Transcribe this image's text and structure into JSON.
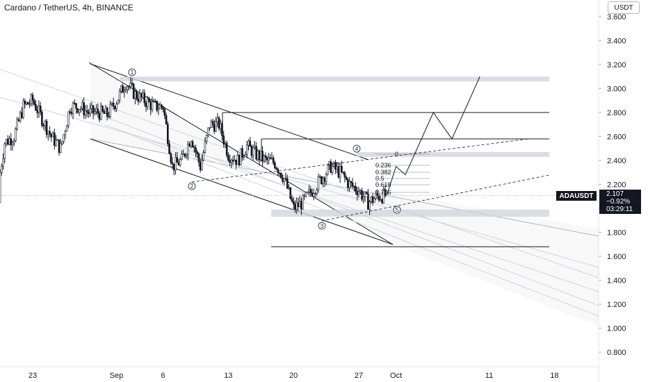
{
  "header": {
    "title": "Cardano / TetherUS, 4h, BINANCE",
    "currency": "USDT"
  },
  "price_label": {
    "symbol": "ADAUSDT",
    "price": "2.107",
    "change": "−0.92%",
    "countdown": "03:29:11"
  },
  "chart_data": {
    "type": "candlestick",
    "symbol": "ADAUSDT",
    "interval": "4h",
    "exchange": "BINANCE",
    "y_axis": {
      "ticks": [
        "3.600",
        "3.400",
        "3.200",
        "3.000",
        "2.800",
        "2.600",
        "2.400",
        "2.200",
        "2.000",
        "1.800",
        "1.600",
        "1.400",
        "1.200",
        "1.000",
        "0.800"
      ],
      "range": [
        0.7,
        3.7
      ]
    },
    "x_axis": {
      "ticks": [
        "23",
        "Sep",
        "6",
        "13",
        "20",
        "27",
        "Oct",
        "11",
        "18"
      ]
    },
    "last_price": 2.107,
    "approx_close_path": [
      {
        "date": "Aug 19",
        "close": 2.05
      },
      {
        "date": "Aug 20",
        "close": 2.55
      },
      {
        "date": "Aug 21",
        "close": 2.6
      },
      {
        "date": "Aug 22",
        "close": 2.85
      },
      {
        "date": "Aug 23",
        "close": 2.9
      },
      {
        "date": "Aug 24",
        "close": 2.75
      },
      {
        "date": "Aug 25",
        "close": 2.6
      },
      {
        "date": "Aug 26",
        "close": 2.5
      },
      {
        "date": "Aug 27",
        "close": 2.85
      },
      {
        "date": "Aug 28",
        "close": 2.85
      },
      {
        "date": "Aug 29",
        "close": 2.8
      },
      {
        "date": "Aug 30",
        "close": 2.8
      },
      {
        "date": "Aug 31",
        "close": 2.78
      },
      {
        "date": "Sep 1",
        "close": 2.9
      },
      {
        "date": "Sep 2",
        "close": 3.05
      },
      {
        "date": "Sep 3",
        "close": 2.95
      },
      {
        "date": "Sep 4",
        "close": 2.9
      },
      {
        "date": "Sep 5",
        "close": 2.85
      },
      {
        "date": "Sep 6",
        "close": 2.85
      },
      {
        "date": "Sep 7",
        "close": 2.35
      },
      {
        "date": "Sep 8",
        "close": 2.4
      },
      {
        "date": "Sep 9",
        "close": 2.6
      },
      {
        "date": "Sep 10",
        "close": 2.35
      },
      {
        "date": "Sep 11",
        "close": 2.7
      },
      {
        "date": "Sep 12",
        "close": 2.7
      },
      {
        "date": "Sep 13",
        "close": 2.45
      },
      {
        "date": "Sep 14",
        "close": 2.4
      },
      {
        "date": "Sep 15",
        "close": 2.52
      },
      {
        "date": "Sep 16",
        "close": 2.45
      },
      {
        "date": "Sep 17",
        "close": 2.4
      },
      {
        "date": "Sep 18",
        "close": 2.38
      },
      {
        "date": "Sep 19",
        "close": 2.25
      },
      {
        "date": "Sep 20",
        "close": 2.0
      },
      {
        "date": "Sep 21",
        "close": 2.05
      },
      {
        "date": "Sep 22",
        "close": 2.15
      },
      {
        "date": "Sep 23",
        "close": 2.25
      },
      {
        "date": "Sep 24",
        "close": 2.35
      },
      {
        "date": "Sep 25",
        "close": 2.3
      },
      {
        "date": "Sep 26",
        "close": 2.2
      },
      {
        "date": "Sep 27",
        "close": 2.15
      },
      {
        "date": "Sep 28",
        "close": 2.05
      },
      {
        "date": "Sep 29",
        "close": 2.1
      },
      {
        "date": "Sep 30",
        "close": 2.107
      }
    ],
    "fib_levels": [
      "0",
      "0.236",
      "0.382",
      "0.5",
      "0.618",
      "0.786"
    ],
    "wave_labels": [
      "1",
      "2",
      "3",
      "4",
      "5"
    ],
    "zones": [
      {
        "from": 3.06,
        "to": 3.1
      },
      {
        "from": 2.43,
        "to": 2.47
      },
      {
        "from": 1.93,
        "to": 1.99
      }
    ],
    "levels": [
      2.8,
      2.58,
      1.68
    ],
    "projection_path": [
      {
        "date": "Sep 30",
        "value": 2.107
      },
      {
        "date": "Oct 1",
        "value": 2.35
      },
      {
        "date": "Oct 2",
        "value": 2.28
      },
      {
        "date": "Oct 5",
        "value": 2.8
      },
      {
        "date": "Oct 7",
        "value": 2.58
      },
      {
        "date": "Oct 10",
        "value": 3.1
      }
    ]
  }
}
